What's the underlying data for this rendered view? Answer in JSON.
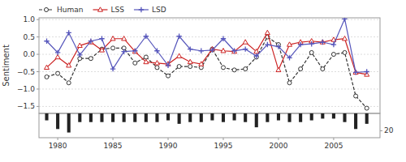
{
  "chart_data": [
    {
      "type": "line",
      "y_label": "Sentiment",
      "x": [
        1979,
        1980,
        1981,
        1982,
        1983,
        1984,
        1985,
        1986,
        1987,
        1988,
        1989,
        1990,
        1991,
        1992,
        1993,
        1994,
        1995,
        1996,
        1997,
        1998,
        1999,
        2000,
        2001,
        2002,
        2003,
        2004,
        2005,
        2006,
        2007,
        2008
      ],
      "series": [
        {
          "name": "Human",
          "color": "#333333",
          "marker": "circle",
          "line_style": "dashed",
          "values": [
            -0.65,
            -0.55,
            -0.82,
            -0.12,
            -0.12,
            0.15,
            0.18,
            0.18,
            -0.25,
            -0.08,
            -0.38,
            -0.62,
            -0.35,
            -0.35,
            -0.38,
            0.15,
            -0.38,
            -0.45,
            -0.42,
            -0.08,
            0.5,
            0.28,
            -0.82,
            -0.42,
            0.05,
            -0.42,
            0.0,
            0.05,
            -1.2,
            -1.55
          ]
        },
        {
          "name": "LSS",
          "color": "#cc2222",
          "marker": "triangle",
          "line_style": "solid",
          "values": [
            -0.38,
            -0.08,
            -0.32,
            0.25,
            0.35,
            0.12,
            0.45,
            0.45,
            0.08,
            -0.22,
            -0.25,
            -0.28,
            -0.05,
            -0.22,
            -0.28,
            0.15,
            0.1,
            0.08,
            0.35,
            0.08,
            0.62,
            -0.45,
            0.28,
            0.35,
            0.38,
            0.35,
            0.42,
            0.45,
            -0.52,
            -0.58
          ]
        },
        {
          "name": "LSD",
          "color": "#5555bb",
          "marker": "plus",
          "line_style": "solid",
          "values": [
            0.38,
            0.05,
            0.62,
            -0.02,
            0.38,
            0.45,
            -0.42,
            0.08,
            0.1,
            0.52,
            0.1,
            -0.32,
            0.52,
            0.15,
            0.1,
            0.12,
            0.45,
            0.1,
            0.15,
            -0.05,
            0.28,
            0.22,
            -0.1,
            0.28,
            0.3,
            0.35,
            0.28,
            1.02,
            -0.52,
            -0.5
          ]
        }
      ],
      "xlim": [
        1978.3,
        2009.2
      ],
      "ylim": [
        -1.7,
        1.05
      ],
      "yticks": [
        {
          "value": -1.5,
          "label": "−1.5"
        },
        {
          "value": -1.0,
          "label": "−1.0"
        },
        {
          "value": -0.5,
          "label": "−0.5"
        },
        {
          "value": 0.0,
          "label": "0.0"
        },
        0.5,
        {
          "value": 1.0,
          "label": "1.0"
        }
      ],
      "grid": true,
      "legend": "upper left",
      "tick_labels": "y"
    },
    {
      "type": "bar",
      "x": [
        1979,
        1980,
        1981,
        1982,
        1983,
        1984,
        1985,
        1986,
        1987,
        1988,
        1989,
        1990,
        1991,
        1992,
        1993,
        1994,
        1995,
        1996,
        1997,
        1998,
        1999,
        2000,
        2001,
        2002,
        2003,
        2004,
        2005,
        2006,
        2007,
        2008
      ],
      "values": [
        8,
        18,
        22,
        10,
        10,
        10,
        10,
        10,
        10,
        10,
        10,
        8,
        12,
        10,
        10,
        8,
        10,
        8,
        10,
        16,
        10,
        8,
        10,
        10,
        8,
        6,
        6,
        10,
        18,
        12
      ],
      "color": "#222222",
      "xlim": [
        1978.3,
        2009.2
      ],
      "xticks": [
        1980,
        1985,
        1990,
        1995,
        2000,
        2005
      ],
      "ylim": [
        0,
        28
      ],
      "yticks": [
        20
      ],
      "grid": false
    }
  ]
}
